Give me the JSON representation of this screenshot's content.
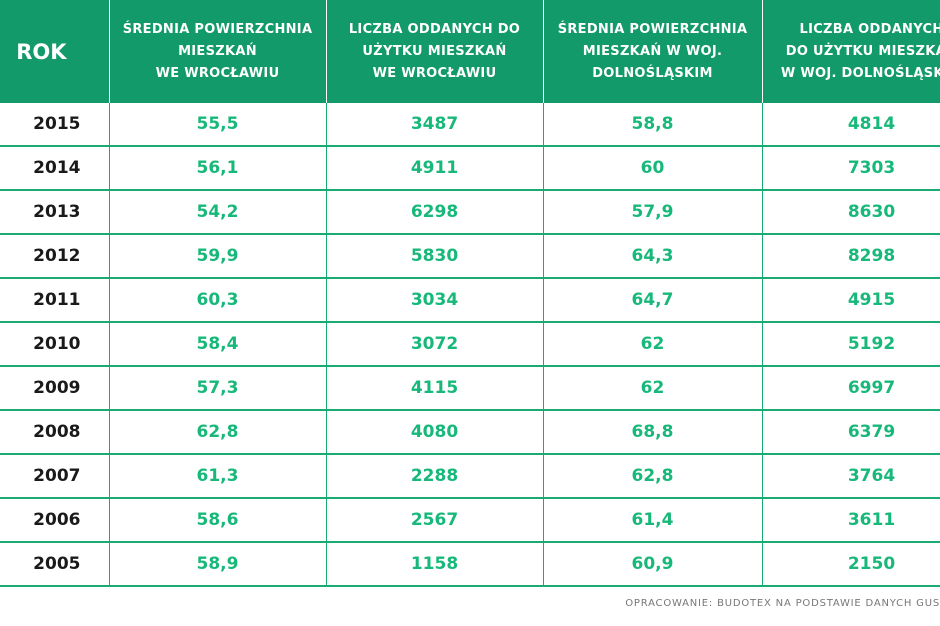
{
  "chart_data": {
    "type": "table",
    "columns": [
      "ROK",
      "ŚREDNIA POWIERZCHNIA\nMIESZKAŃ\nWE  WROCŁAWIU",
      "LICZBA ODDANYCH DO\nUŻYTKU MIESZKAŃ\nWE WROCŁAWIU",
      "ŚREDNIA POWIERZCHNIA\nMIESZKAŃ W WOJ.\nDOLNOŚLĄSKIM",
      "LICZBA ODDANYCH\nDO UŻYTKU MIESZKAŃ\nW WOJ. DOLNOŚLĄSKIM"
    ],
    "rows": [
      [
        "2015",
        "55,5",
        "3487",
        "58,8",
        "4814"
      ],
      [
        "2014",
        "56,1",
        "4911",
        "60",
        "7303"
      ],
      [
        "2013",
        "54,2",
        "6298",
        "57,9",
        "8630"
      ],
      [
        "2012",
        "59,9",
        "5830",
        "64,3",
        "8298"
      ],
      [
        "2011",
        "60,3",
        "3034",
        "64,7",
        "4915"
      ],
      [
        "2010",
        "58,4",
        "3072",
        "62",
        "5192"
      ],
      [
        "2009",
        "57,3",
        "4115",
        "62",
        "6997"
      ],
      [
        "2008",
        "62,8",
        "4080",
        "68,8",
        "6379"
      ],
      [
        "2007",
        "61,3",
        "2288",
        "62,8",
        "3764"
      ],
      [
        "2006",
        "58,6",
        "2567",
        "61,4",
        "3611"
      ],
      [
        "2005",
        "58,9",
        "1158",
        "60,9",
        "2150"
      ]
    ]
  },
  "source": "OPRACOWANIE: BUDOTEX NA PODSTAWIE DANYCH GUS",
  "colors": {
    "header_bg": "#129a6a",
    "value_text": "#17b87a",
    "grid_line": "#1aab72",
    "year_text": "#1a1a1a"
  }
}
